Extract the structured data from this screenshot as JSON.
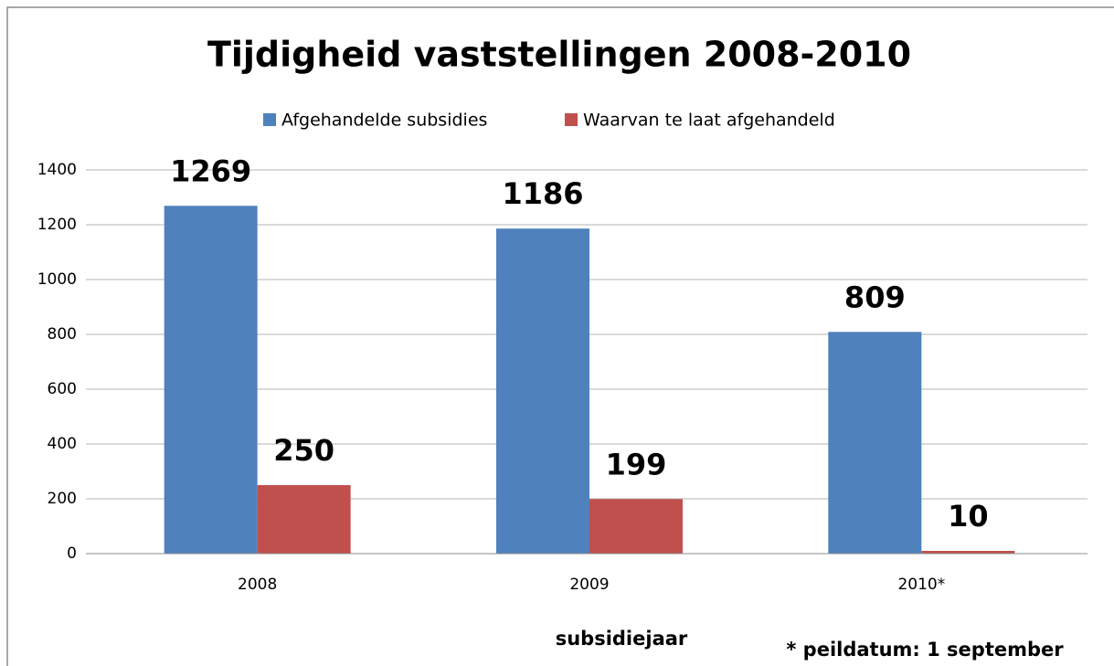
{
  "chart_data": {
    "type": "bar",
    "title": "Tijdigheid vaststellingen 2008-2010",
    "categories": [
      "2008",
      "2009",
      "2010*"
    ],
    "series": [
      {
        "name": "Afgehandelde subsidies",
        "color": "#4f81bd",
        "values": [
          1269,
          1186,
          809
        ]
      },
      {
        "name": "Waarvan te laat afgehandeld",
        "color": "#c0504d",
        "values": [
          250,
          199,
          10
        ]
      }
    ],
    "ylim": [
      0,
      1400
    ],
    "yticks": [
      0,
      200,
      400,
      600,
      800,
      1000,
      1200,
      1400
    ],
    "grid": true,
    "legend": "top",
    "x_label": "subsidiejaar",
    "annotation": "* peildatum: 1 september"
  }
}
